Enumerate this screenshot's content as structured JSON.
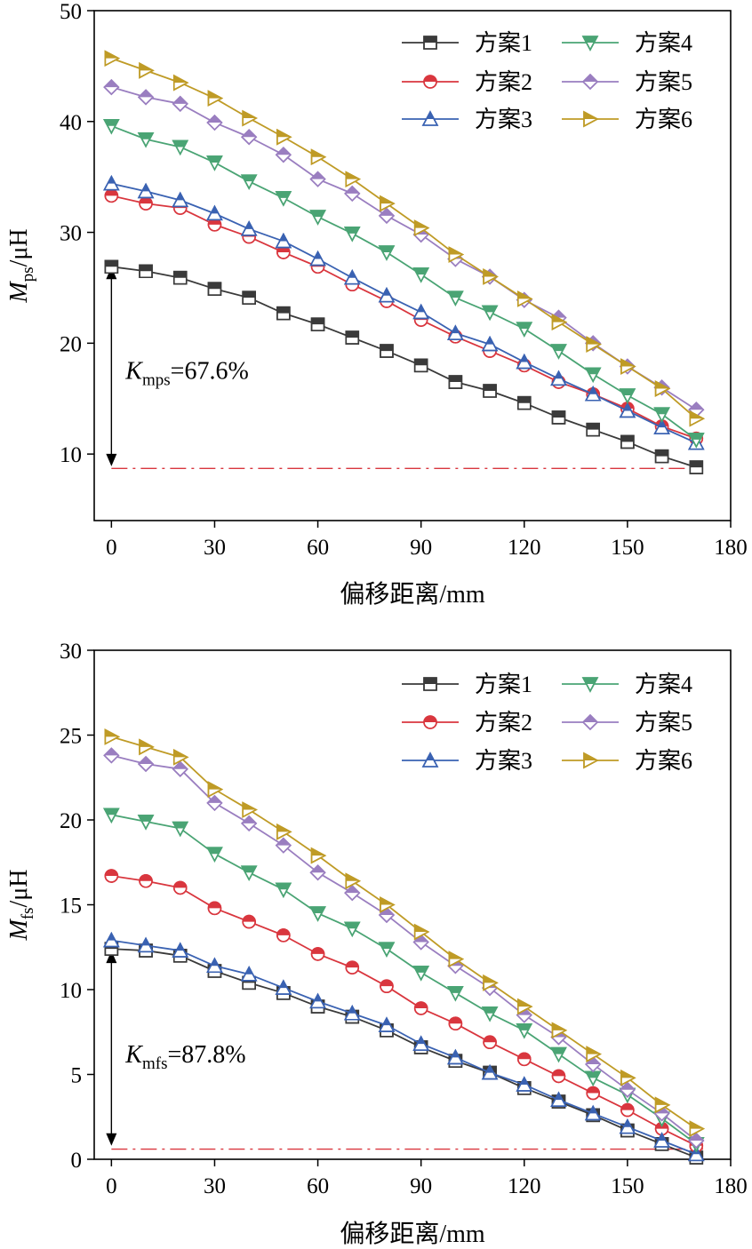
{
  "chart_data": [
    {
      "type": "line",
      "xlabel": "偏移距离/mm",
      "ylabel_main": "M",
      "ylabel_sub": "ps",
      "ylabel_unit": "/μH",
      "xlim": [
        -5,
        180
      ],
      "ylim": [
        4,
        50
      ],
      "xticks": [
        0,
        30,
        60,
        90,
        120,
        150,
        180
      ],
      "yticks": [
        10,
        20,
        30,
        40,
        50
      ],
      "grid": false,
      "legend_position": "top-right",
      "x": [
        0,
        10,
        20,
        30,
        40,
        50,
        60,
        70,
        80,
        90,
        100,
        110,
        120,
        130,
        140,
        150,
        160,
        170
      ],
      "series": [
        {
          "name": "方案1",
          "color": "#3a3a3a",
          "marker": "square",
          "values": [
            26.9,
            26.5,
            25.9,
            24.9,
            24.1,
            22.7,
            21.7,
            20.5,
            19.3,
            18.0,
            16.5,
            15.7,
            14.6,
            13.3,
            12.2,
            11.1,
            9.8,
            8.8
          ]
        },
        {
          "name": "方案2",
          "color": "#d9363e",
          "marker": "circle",
          "values": [
            33.3,
            32.6,
            32.2,
            30.7,
            29.6,
            28.2,
            26.9,
            25.3,
            23.8,
            22.1,
            20.6,
            19.3,
            18.0,
            16.5,
            15.4,
            14.1,
            12.5,
            11.4
          ]
        },
        {
          "name": "方案3",
          "color": "#3a62b2",
          "marker": "triangle-up",
          "values": [
            34.4,
            33.7,
            32.9,
            31.7,
            30.3,
            29.2,
            27.6,
            25.9,
            24.3,
            22.8,
            20.9,
            19.9,
            18.3,
            16.8,
            15.4,
            13.9,
            12.4,
            11.0
          ]
        },
        {
          "name": "方案4",
          "color": "#4aa474",
          "marker": "triangle-down",
          "values": [
            39.6,
            38.4,
            37.7,
            36.3,
            34.6,
            33.1,
            31.4,
            29.9,
            28.2,
            26.2,
            24.1,
            22.8,
            21.3,
            19.3,
            17.2,
            15.3,
            13.6,
            11.3
          ]
        },
        {
          "name": "方案5",
          "color": "#9a7ec0",
          "marker": "diamond",
          "values": [
            43.1,
            42.2,
            41.6,
            39.9,
            38.6,
            37.0,
            34.8,
            33.5,
            31.5,
            29.8,
            27.6,
            26.0,
            23.9,
            22.3,
            20.0,
            17.9,
            16.0,
            14.0
          ]
        },
        {
          "name": "方案6",
          "color": "#bf9b26",
          "marker": "triangle-right",
          "values": [
            45.7,
            44.6,
            43.5,
            42.1,
            40.3,
            38.6,
            36.8,
            34.8,
            32.6,
            30.4,
            28.0,
            26.0,
            24.0,
            21.9,
            19.9,
            17.9,
            15.9,
            13.2
          ]
        }
      ],
      "reference_line": {
        "y": 8.7,
        "color": "#d9363e",
        "x_from": 0,
        "x_to": 172
      },
      "arrow": {
        "x": 0,
        "y_from": 8.9,
        "y_to": 26.9
      },
      "annotation": {
        "main": "K",
        "sub": "mps",
        "text": "=67.6%",
        "x": 0.5,
        "y": 16.8
      }
    },
    {
      "type": "line",
      "xlabel": "偏移距离/mm",
      "ylabel_main": "M",
      "ylabel_sub": "fs",
      "ylabel_unit": "/μH",
      "xlim": [
        -5,
        180
      ],
      "ylim": [
        0,
        30
      ],
      "xticks": [
        0,
        30,
        60,
        90,
        120,
        150,
        180
      ],
      "yticks": [
        0,
        5,
        10,
        15,
        20,
        25,
        30
      ],
      "grid": false,
      "legend_position": "top-right",
      "x": [
        0,
        10,
        20,
        30,
        40,
        50,
        60,
        70,
        80,
        90,
        100,
        110,
        120,
        130,
        140,
        150,
        160,
        170
      ],
      "series": [
        {
          "name": "方案1",
          "color": "#3a3a3a",
          "marker": "square",
          "values": [
            12.4,
            12.3,
            12.0,
            11.1,
            10.4,
            9.8,
            9.0,
            8.4,
            7.6,
            6.6,
            5.8,
            5.1,
            4.2,
            3.4,
            2.6,
            1.7,
            0.9,
            0.1
          ]
        },
        {
          "name": "方案2",
          "color": "#d9363e",
          "marker": "circle",
          "values": [
            16.7,
            16.4,
            16.0,
            14.8,
            14.0,
            13.2,
            12.1,
            11.3,
            10.2,
            8.9,
            8.0,
            6.9,
            5.9,
            4.9,
            3.9,
            2.9,
            1.8,
            0.8
          ]
        },
        {
          "name": "方案3",
          "color": "#3a62b2",
          "marker": "triangle-up",
          "values": [
            12.9,
            12.6,
            12.3,
            11.4,
            10.9,
            10.1,
            9.3,
            8.6,
            7.9,
            6.8,
            6.0,
            5.1,
            4.4,
            3.5,
            2.7,
            1.9,
            1.1,
            0.3
          ]
        },
        {
          "name": "方案4",
          "color": "#4aa474",
          "marker": "triangle-down",
          "values": [
            20.3,
            19.9,
            19.5,
            18.0,
            16.9,
            15.9,
            14.5,
            13.6,
            12.4,
            11.0,
            9.8,
            8.6,
            7.6,
            6.2,
            4.8,
            3.8,
            2.4,
            0.9
          ]
        },
        {
          "name": "方案5",
          "color": "#9a7ec0",
          "marker": "diamond",
          "values": [
            23.8,
            23.3,
            23.0,
            21.0,
            19.8,
            18.5,
            16.9,
            15.7,
            14.4,
            12.8,
            11.4,
            10.1,
            8.5,
            7.2,
            5.6,
            4.1,
            2.7,
            1.1
          ]
        },
        {
          "name": "方案6",
          "color": "#bf9b26",
          "marker": "triangle-right",
          "values": [
            24.9,
            24.3,
            23.7,
            21.8,
            20.6,
            19.3,
            17.9,
            16.4,
            15.0,
            13.4,
            11.8,
            10.4,
            9.0,
            7.6,
            6.2,
            4.8,
            3.2,
            1.8
          ]
        }
      ],
      "reference_line": {
        "y": 0.6,
        "color": "#d9363e",
        "x_from": 0,
        "x_to": 172
      },
      "arrow": {
        "x": 0,
        "y_from": 0.8,
        "y_to": 12.3
      },
      "annotation": {
        "main": "K",
        "sub": "mfs",
        "text": "=87.8%",
        "x": 0.5,
        "y": 5.7
      }
    }
  ]
}
